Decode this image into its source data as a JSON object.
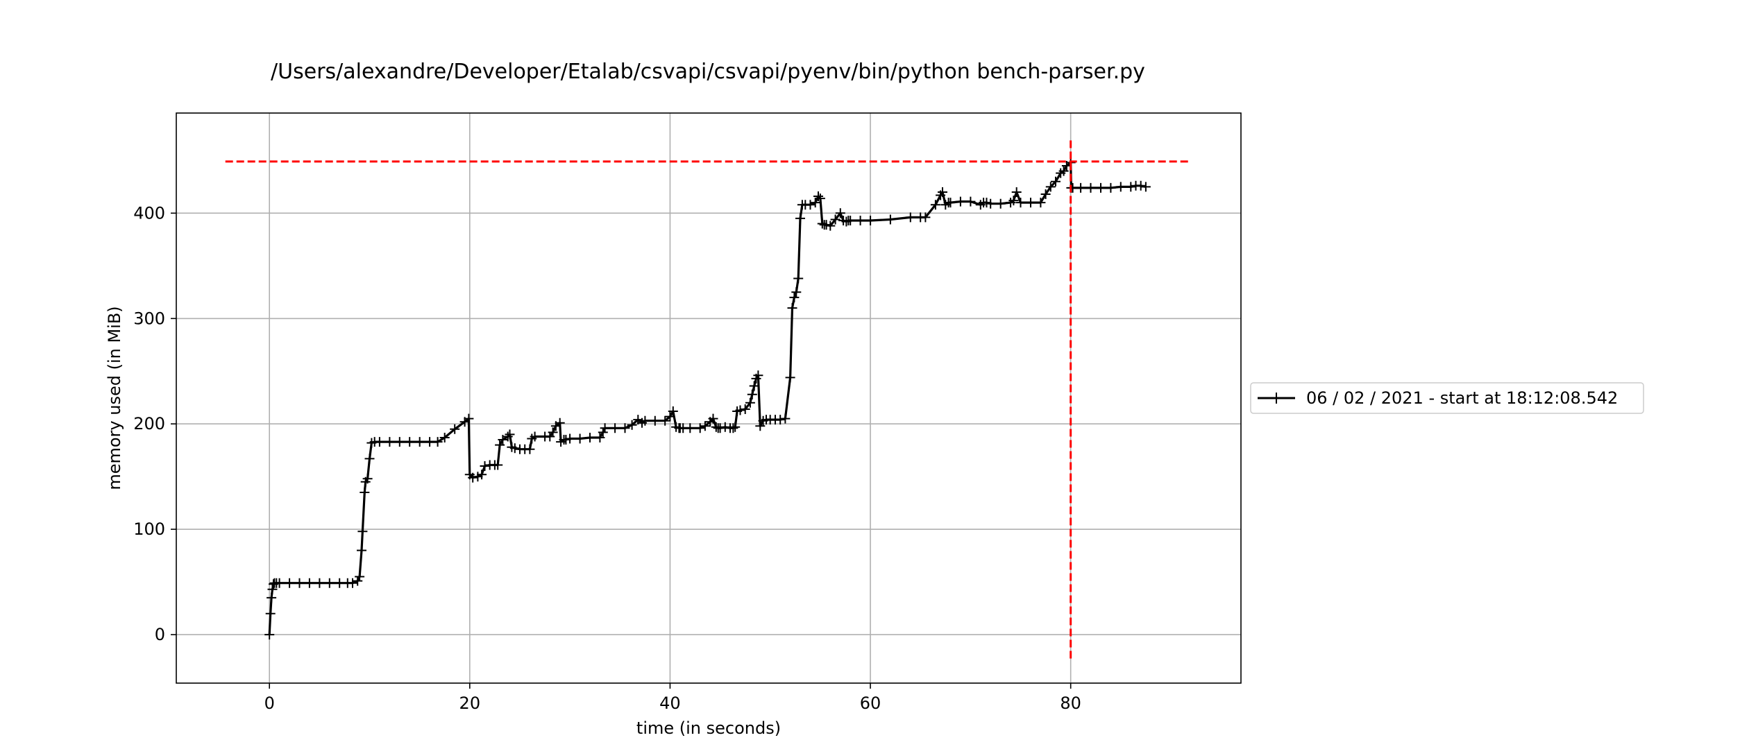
{
  "chart_data": {
    "type": "line",
    "title": "/Users/alexandre/Developer/Etalab/csvapi/csvapi/pyenv/bin/python bench-parser.py",
    "xlabel": "time (in seconds)",
    "ylabel": "memory used (in MiB)",
    "xlim": [
      -9.3,
      97.0
    ],
    "ylim": [
      -46,
      495
    ],
    "xticks": [
      0,
      20,
      40,
      60,
      80
    ],
    "yticks": [
      0,
      100,
      200,
      300,
      400
    ],
    "grid": true,
    "legend_position": "outside-right",
    "series": [
      {
        "name": "06 / 02 / 2021 - start at 18:12:08.542",
        "color": "#000000",
        "marker": "+",
        "x": [
          0.0,
          0.1,
          0.2,
          0.3,
          0.4,
          0.5,
          0.7,
          1.0,
          2.0,
          3.0,
          4.0,
          5.0,
          6.0,
          7.0,
          7.8,
          8.3,
          8.8,
          9.0,
          9.2,
          9.3,
          9.5,
          9.6,
          9.8,
          10.0,
          10.2,
          10.5,
          11.0,
          12.0,
          13.0,
          14.0,
          15.0,
          16.0,
          16.8,
          17.5,
          18.5,
          19.5,
          19.9,
          20.0,
          20.3,
          20.8,
          21.2,
          21.5,
          22.0,
          22.5,
          22.8,
          23.0,
          23.3,
          23.8,
          24.0,
          24.2,
          24.5,
          25.0,
          25.5,
          26.0,
          26.2,
          26.5,
          27.5,
          28.0,
          28.3,
          28.6,
          29.0,
          29.1,
          29.4,
          29.6,
          30.0,
          31.0,
          32.0,
          33.0,
          33.3,
          33.5,
          34.5,
          35.5,
          36.2,
          36.8,
          37.2,
          37.5,
          38.5,
          39.5,
          40.0,
          40.3,
          40.6,
          40.9,
          41.0,
          41.3,
          42.0,
          43.0,
          43.5,
          44.0,
          44.3,
          44.6,
          44.8,
          45.0,
          45.5,
          46.0,
          46.3,
          46.5,
          46.7,
          47.0,
          47.5,
          48.0,
          48.2,
          48.4,
          48.6,
          48.8,
          49.0,
          49.3,
          49.6,
          50.0,
          50.5,
          51.0,
          51.5,
          52.0,
          52.2,
          52.4,
          52.6,
          52.8,
          53.0,
          53.2,
          53.5,
          54.0,
          54.5,
          54.8,
          55.0,
          55.2,
          55.4,
          55.6,
          56.0,
          56.5,
          57.0,
          57.3,
          57.6,
          57.8,
          58.0,
          59.0,
          60.0,
          62.0,
          64.0,
          65.0,
          65.5,
          66.5,
          67.0,
          67.2,
          67.5,
          67.8,
          68.0,
          69.0,
          70.0,
          71.0,
          71.3,
          71.6,
          72.0,
          73.0,
          74.0,
          74.3,
          74.6,
          75.0,
          76.0,
          77.0,
          77.5,
          78.0,
          78.5,
          79.0,
          79.3,
          79.6,
          80.0,
          80.05,
          80.2,
          81.0,
          82.0,
          83.0,
          84.0,
          85.0,
          86.0,
          86.5,
          87.0,
          87.5
        ],
        "y": [
          0,
          20,
          35,
          43,
          48,
          49,
          49,
          49,
          49,
          49,
          49,
          49,
          49,
          49,
          49,
          49,
          51,
          55,
          80,
          98,
          135,
          145,
          148,
          167,
          182,
          183,
          183,
          183,
          183,
          183,
          183,
          183,
          183,
          187,
          195,
          202,
          205,
          152,
          149,
          150,
          152,
          160,
          161,
          161,
          161,
          180,
          185,
          188,
          190,
          178,
          177,
          176,
          176,
          176,
          186,
          188,
          188,
          188,
          192,
          198,
          201,
          183,
          185,
          185,
          186,
          186,
          187,
          187,
          192,
          196,
          196,
          196,
          199,
          204,
          201,
          203,
          203,
          203,
          207,
          212,
          197,
          196,
          196,
          196,
          196,
          196,
          198,
          202,
          205,
          197,
          196,
          196,
          197,
          196,
          196,
          197,
          212,
          213,
          214,
          220,
          228,
          236,
          243,
          246,
          198,
          203,
          204,
          204,
          204,
          204,
          205,
          244,
          310,
          320,
          325,
          338,
          395,
          408,
          408,
          408,
          410,
          416,
          414,
          390,
          389,
          389,
          388,
          394,
          400,
          393,
          392,
          393,
          393,
          393,
          393,
          394,
          396,
          396,
          396,
          408,
          417,
          420,
          408,
          410,
          410,
          411,
          411,
          408,
          410,
          410,
          409,
          409,
          410,
          412,
          420,
          410,
          410,
          410,
          418,
          425,
          430,
          438,
          440,
          445,
          448,
          424,
          424,
          424,
          424,
          424,
          424,
          425,
          425,
          426,
          426,
          425
        ]
      }
    ],
    "max_level": {
      "y": 449,
      "x_range": [
        -4.4,
        91.9
      ],
      "color": "#ff0000"
    },
    "max_time": {
      "x": 80.0,
      "y_range": [
        -23,
        469
      ],
      "color": "#ff0000"
    }
  }
}
